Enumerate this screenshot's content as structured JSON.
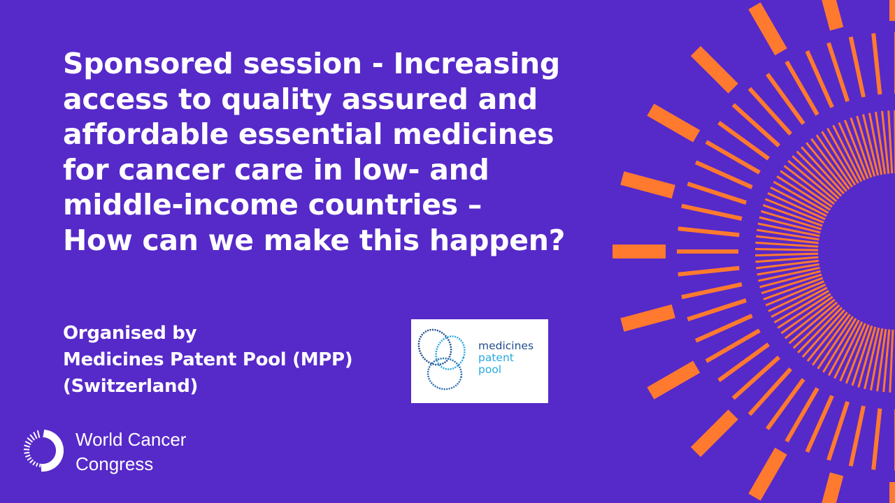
{
  "colors": {
    "background": "#5629c9",
    "accent": "#ff7a2e",
    "logo_dark": "#1f4d8f",
    "logo_light": "#2aa8e0"
  },
  "session": {
    "title_lines": [
      "Sponsored session - Increasing",
      "access to quality assured and",
      "affordable essential medicines",
      "for cancer care in low- and",
      "middle-income countries –",
      "How can we make this happen?"
    ],
    "organiser_lines": [
      "Organised by",
      "Medicines Patent Pool (MPP)",
      "(Switzerland)"
    ]
  },
  "partner_logo": {
    "lines": [
      "medicines",
      "patent",
      "pool"
    ]
  },
  "brand_logo": {
    "lines": [
      "World Cancer",
      "Congress"
    ]
  }
}
